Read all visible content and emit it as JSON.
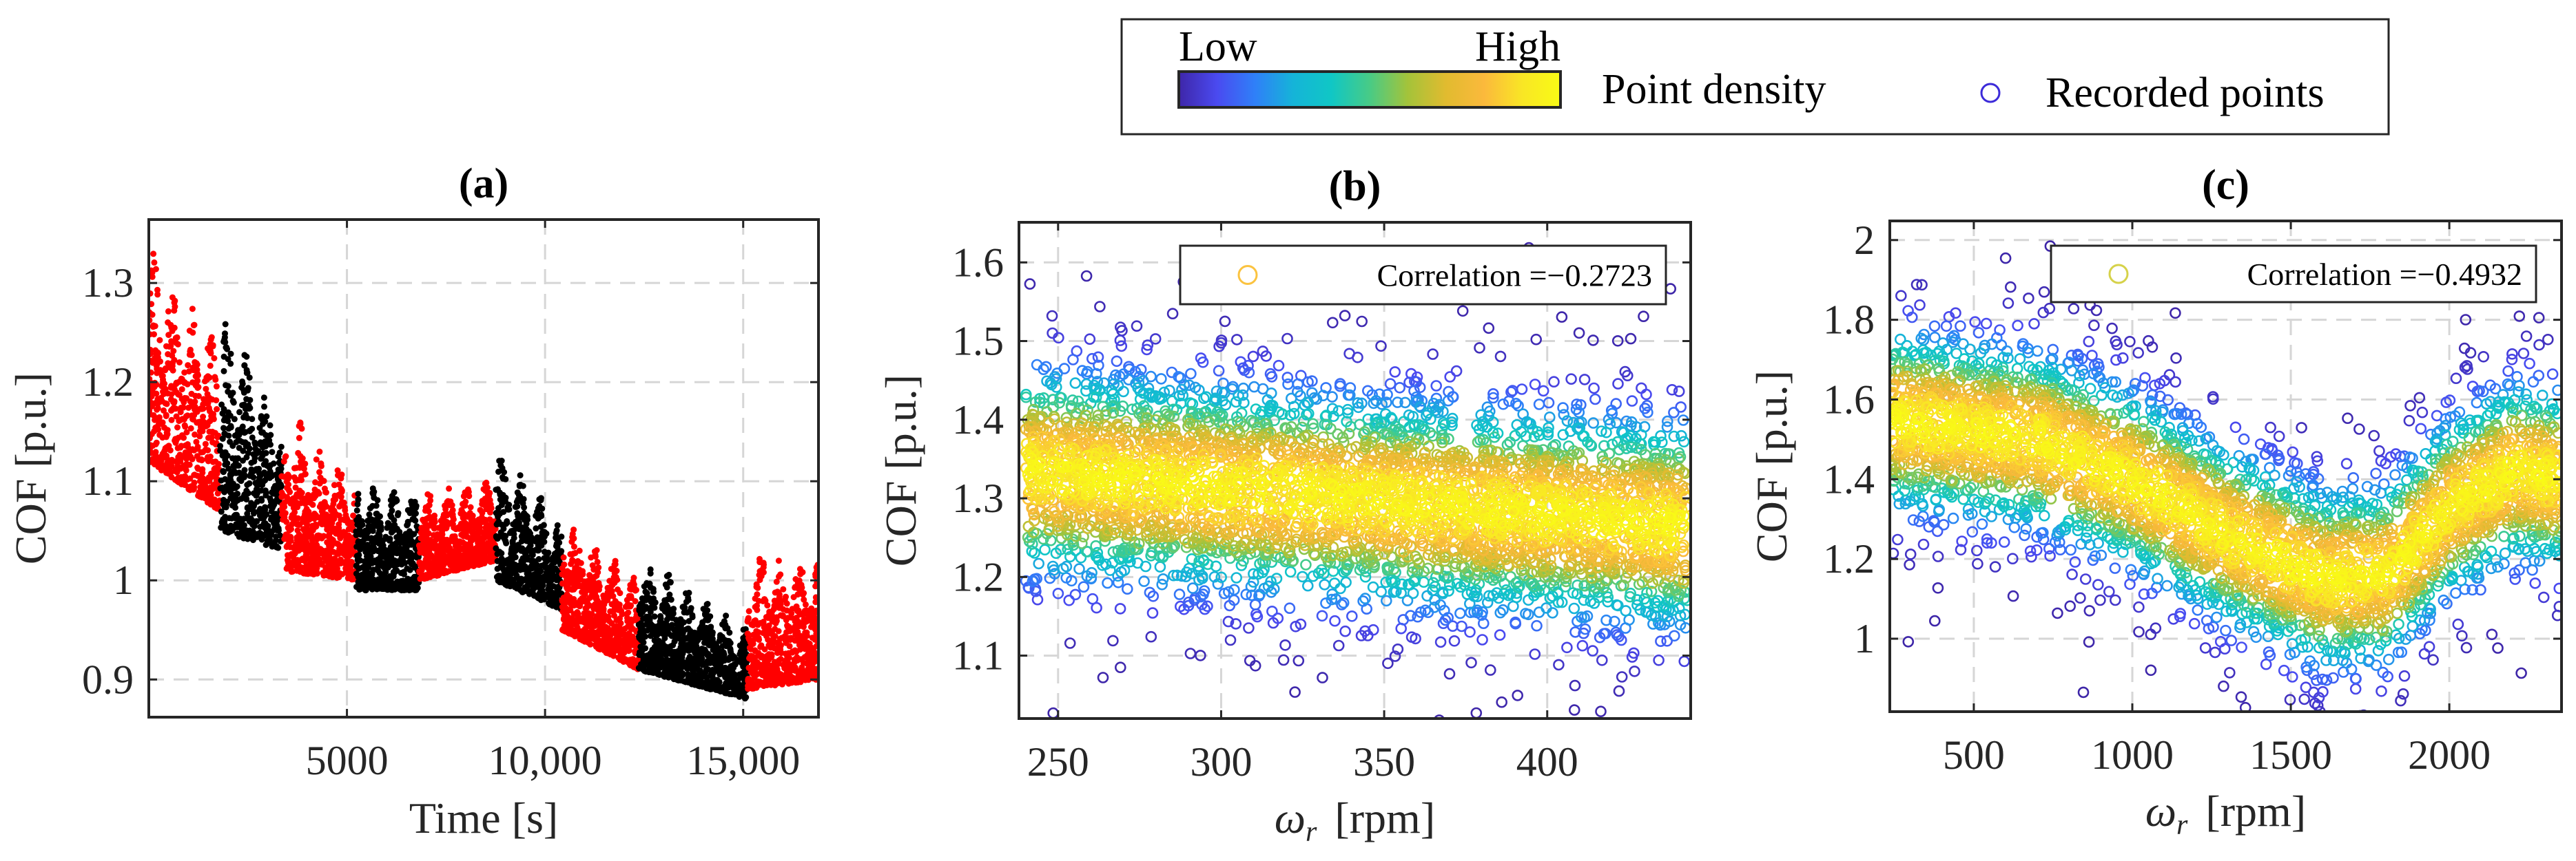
{
  "legend": {
    "low_label": "Low",
    "high_label": "High",
    "density_label": "Point density",
    "recorded_label": "Recorded points",
    "recorded_color": "#3c2bd9",
    "colormap": [
      "#3e26a8",
      "#4a4af0",
      "#2f80f8",
      "#15b4d8",
      "#10c7c5",
      "#48cb86",
      "#a4c33a",
      "#e1bb2f",
      "#fbb93c",
      "#f9e625",
      "#f9fb15"
    ]
  },
  "chart_data": [
    {
      "type": "scatter",
      "title": "(a)",
      "xlabel": "Time [s]",
      "ylabel": "COF [p.u.]",
      "xlim": [
        0,
        16900
      ],
      "ylim": [
        0.862,
        1.364
      ],
      "xticks": [
        5000,
        10000,
        15000
      ],
      "xtick_labels": [
        "5000",
        "10,000",
        "15,000"
      ],
      "yticks": [
        0.9,
        1,
        1.1,
        1.2,
        1.3
      ],
      "ytick_labels": [
        "0.9",
        "1",
        "1.1",
        "1.2",
        "1.3"
      ],
      "grid": true,
      "series_colors": {
        "red": "#ff0000",
        "black": "#000000"
      },
      "segments": [
        {
          "color": "red",
          "t_start": 0,
          "t_end": 1790,
          "upper": [
            1.34,
            1.24
          ],
          "lower": [
            1.12,
            1.07
          ]
        },
        {
          "color": "black",
          "t_start": 1790,
          "t_end": 3350,
          "upper": [
            1.28,
            1.17
          ],
          "lower": [
            1.05,
            1.03
          ]
        },
        {
          "color": "red",
          "t_start": 3350,
          "t_end": 5230,
          "upper": [
            1.18,
            1.1
          ],
          "lower": [
            1.01,
            1.0
          ]
        },
        {
          "color": "black",
          "t_start": 5230,
          "t_end": 6820,
          "upper": [
            1.1,
            1.09
          ],
          "lower": [
            0.99,
            0.99
          ]
        },
        {
          "color": "red",
          "t_start": 6820,
          "t_end": 8750,
          "upper": [
            1.09,
            1.1
          ],
          "lower": [
            1.0,
            1.02
          ]
        },
        {
          "color": "black",
          "t_start": 8750,
          "t_end": 10430,
          "upper": [
            1.14,
            1.06
          ],
          "lower": [
            1.0,
            0.97
          ]
        },
        {
          "color": "red",
          "t_start": 10430,
          "t_end": 12360,
          "upper": [
            1.07,
            1.0
          ],
          "lower": [
            0.95,
            0.91
          ]
        },
        {
          "color": "black",
          "t_start": 12360,
          "t_end": 15100,
          "upper": [
            1.03,
            0.95
          ],
          "lower": [
            0.91,
            0.88
          ]
        },
        {
          "color": "red",
          "t_start": 15100,
          "t_end": 16900,
          "upper": [
            1.03,
            1.02
          ],
          "lower": [
            0.89,
            0.9
          ]
        }
      ]
    },
    {
      "type": "scatter",
      "title": "(b)",
      "xlabel": {
        "symbol": "ω",
        "sub": "r",
        "unit": "[rpm]"
      },
      "ylabel": "COF [p.u.]",
      "xlim": [
        238,
        444
      ],
      "ylim": [
        1.02,
        1.651
      ],
      "xticks": [
        250,
        300,
        350,
        400
      ],
      "xtick_labels": [
        "250",
        "300",
        "350",
        "400"
      ],
      "yticks": [
        1.1,
        1.2,
        1.3,
        1.4,
        1.5,
        1.6
      ],
      "ytick_labels": [
        "1.1",
        "1.2",
        "1.3",
        "1.4",
        "1.5",
        "1.6"
      ],
      "grid": true,
      "legend_text": "Correlation =−0.2723",
      "legend_marker_color": "#fbc340",
      "legend_position": "top-right",
      "correlation": -0.2723,
      "x_range": [
        240,
        443
      ],
      "center_line": [
        [
          240,
          1.335
        ],
        [
          443,
          1.265
        ]
      ],
      "spread_sd": 0.07
    },
    {
      "type": "scatter",
      "title": "(c)",
      "xlabel": {
        "symbol": "ω",
        "sub": "r",
        "unit": "[rpm]"
      },
      "ylabel": "COF [p.u.]",
      "xlim": [
        235,
        2354
      ],
      "ylim": [
        0.817,
        2.048
      ],
      "xticks": [
        500,
        1000,
        1500,
        2000
      ],
      "xtick_labels": [
        "500",
        "1000",
        "1500",
        "2000"
      ],
      "yticks": [
        1,
        1.2,
        1.4,
        1.6,
        1.8,
        2
      ],
      "ytick_labels": [
        "1",
        "1.2",
        "1.4",
        "1.6",
        "1.8",
        "2"
      ],
      "grid": true,
      "legend_text": "Correlation =−0.4932",
      "legend_marker_color": "#d6d24a",
      "legend_position": "top-right",
      "correlation": -0.4932,
      "x_range": [
        240,
        2350
      ],
      "center_line": [
        [
          240,
          1.55
        ],
        [
          700,
          1.5
        ],
        [
          1000,
          1.4
        ],
        [
          1300,
          1.26
        ],
        [
          1600,
          1.15
        ],
        [
          1800,
          1.16
        ],
        [
          2000,
          1.33
        ],
        [
          2200,
          1.42
        ],
        [
          2350,
          1.4
        ]
      ],
      "spread_sd": 0.12
    }
  ]
}
